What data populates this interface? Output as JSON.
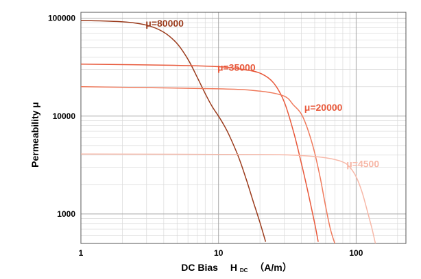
{
  "chart_data": {
    "type": "line",
    "x_scale": "log",
    "y_scale": "log",
    "xlim": [
      1,
      230
    ],
    "ylim": [
      500,
      115000
    ],
    "grid": true,
    "x_ticks": [
      {
        "value": 1,
        "label": "1"
      },
      {
        "value": 10,
        "label": "10"
      },
      {
        "value": 100,
        "label": "100"
      }
    ],
    "y_ticks": [
      {
        "value": 1000,
        "label": "1000"
      },
      {
        "value": 10000,
        "label": "10000"
      },
      {
        "value": 100000,
        "label": "100000"
      }
    ],
    "xlabel": {
      "main": "DC Bias",
      "symbol": "H",
      "subscript": "DC",
      "unit": "（A/m）"
    },
    "ylabel": "Permeability  μ",
    "series": [
      {
        "name": "μ=80000",
        "color": "#9b3b1c",
        "points": [
          [
            1,
            95000
          ],
          [
            2,
            92000
          ],
          [
            3,
            85000
          ],
          [
            4,
            72000
          ],
          [
            5,
            55000
          ],
          [
            6,
            38000
          ],
          [
            7,
            25000
          ],
          [
            8,
            17000
          ],
          [
            9,
            12500
          ],
          [
            10,
            10000
          ],
          [
            11,
            8000
          ],
          [
            12,
            6300
          ],
          [
            14,
            3800
          ],
          [
            16,
            2200
          ],
          [
            18,
            1300
          ],
          [
            20,
            820
          ],
          [
            22,
            520
          ]
        ]
      },
      {
        "name": "μ=35000",
        "color": "#e8583a",
        "points": [
          [
            1,
            34000
          ],
          [
            5,
            33000
          ],
          [
            10,
            32000
          ],
          [
            15,
            30000
          ],
          [
            20,
            27500
          ],
          [
            25,
            22000
          ],
          [
            30,
            14000
          ],
          [
            35,
            7000
          ],
          [
            40,
            3300
          ],
          [
            45,
            1600
          ],
          [
            50,
            800
          ],
          [
            53,
            520
          ]
        ]
      },
      {
        "name": "μ=20000",
        "color": "#ef7a5c",
        "points": [
          [
            1,
            20000
          ],
          [
            10,
            19000
          ],
          [
            20,
            18000
          ],
          [
            30,
            16000
          ],
          [
            35,
            13000
          ],
          [
            40,
            10500
          ],
          [
            45,
            7000
          ],
          [
            50,
            4200
          ],
          [
            55,
            2300
          ],
          [
            60,
            1200
          ],
          [
            65,
            700
          ],
          [
            70,
            500
          ]
        ]
      },
      {
        "name": "μ=4500",
        "color": "#f7b8a8",
        "points": [
          [
            1,
            4100
          ],
          [
            20,
            4050
          ],
          [
            40,
            3950
          ],
          [
            60,
            3750
          ],
          [
            80,
            3400
          ],
          [
            90,
            3000
          ],
          [
            100,
            2400
          ],
          [
            110,
            1700
          ],
          [
            120,
            1100
          ],
          [
            130,
            720
          ],
          [
            138,
            500
          ]
        ]
      }
    ],
    "labels": [
      {
        "text": "μ=80000",
        "color": "#9b3b1c",
        "x": 2.95,
        "y": 82000
      },
      {
        "text": "μ=35000",
        "color": "#e8583a",
        "x": 9.8,
        "y": 29000
      },
      {
        "text": "μ=20000",
        "color": "#e8583a",
        "x": 42,
        "y": 11300
      },
      {
        "text": "μ=4500",
        "color": "#f7b8a8",
        "x": 85,
        "y": 3000
      }
    ]
  }
}
